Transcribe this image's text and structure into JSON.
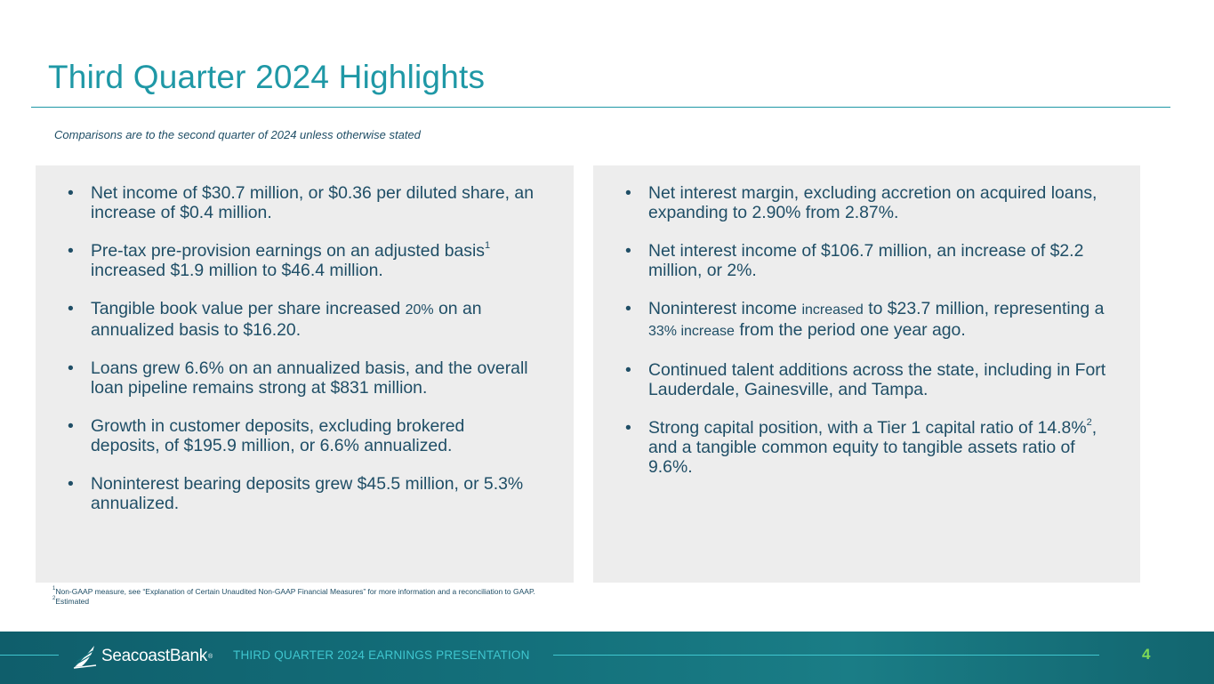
{
  "title": "Third Quarter 2024 Highlights",
  "subtitle": "Comparisons are to the second quarter of 2024 unless otherwise stated",
  "left_panel": {
    "b1": "Net income of $30.7 million, or $0.36 per diluted share, an increase of $0.4 million.",
    "b2_text": "Pre-tax pre-provision earnings on an adjusted basis",
    "b2_sup": "1",
    "b2_tail": "increased $1.9 million to $46.4 million.",
    "b3_a": "Tangible book value per share increased ",
    "b3_b": "20%",
    "b3_c": " on an annualized basis to $16.20.",
    "b4": "Loans grew 6.6% on an annualized basis, and the overall loan pipeline remains strong at $831 million.",
    "b5": "Growth in customer deposits, excluding brokered deposits, of $195.9 million, or 6.6% annualized.",
    "b6": "Noninterest bearing deposits grew $45.5 million, or 5.3% annualized."
  },
  "right_panel": {
    "b1": "Net interest margin, excluding accretion on acquired loans, expanding to 2.90% from 2.87%.",
    "b2": "Net interest income of $106.7 million, an increase of $2.2 million, or 2%.",
    "b3_a": "Noninterest income ",
    "b3_b": "increased",
    "b3_c": " to $23.7 million, representing a ",
    "b3_d": "33% increase",
    "b3_e": " from the period one year ago.",
    "b4": "Continued talent additions across the state, including in Fort Lauderdale, Gainesville, and Tampa.",
    "b5_a": "Strong capital position, with a Tier 1 capital ratio of 14.8%",
    "b5_sup": "2",
    "b5_b": ", and a tangible common equity to tangible assets ratio of 9.6%."
  },
  "footnotes": {
    "n1_mark": "1",
    "n1": "Non-GAAP measure, see “Explanation of Certain Unaudited Non-GAAP Financial Measures” for more information and a reconciliation to GAAP.",
    "n2_mark": "2",
    "n2": "Estimated"
  },
  "footer": {
    "logo_text": "SeacoastBank",
    "logo_tm": "®",
    "label": "THIRD QUARTER 2024 EARNINGS PRESENTATION",
    "page_number": "4"
  },
  "colors": {
    "title": "#1f98a6",
    "body_text": "#1f4e66",
    "panel_bg": "#ededed",
    "footer_bg": "#14717c",
    "footer_accent": "#3fc6cf",
    "page_number": "#7ed957"
  }
}
